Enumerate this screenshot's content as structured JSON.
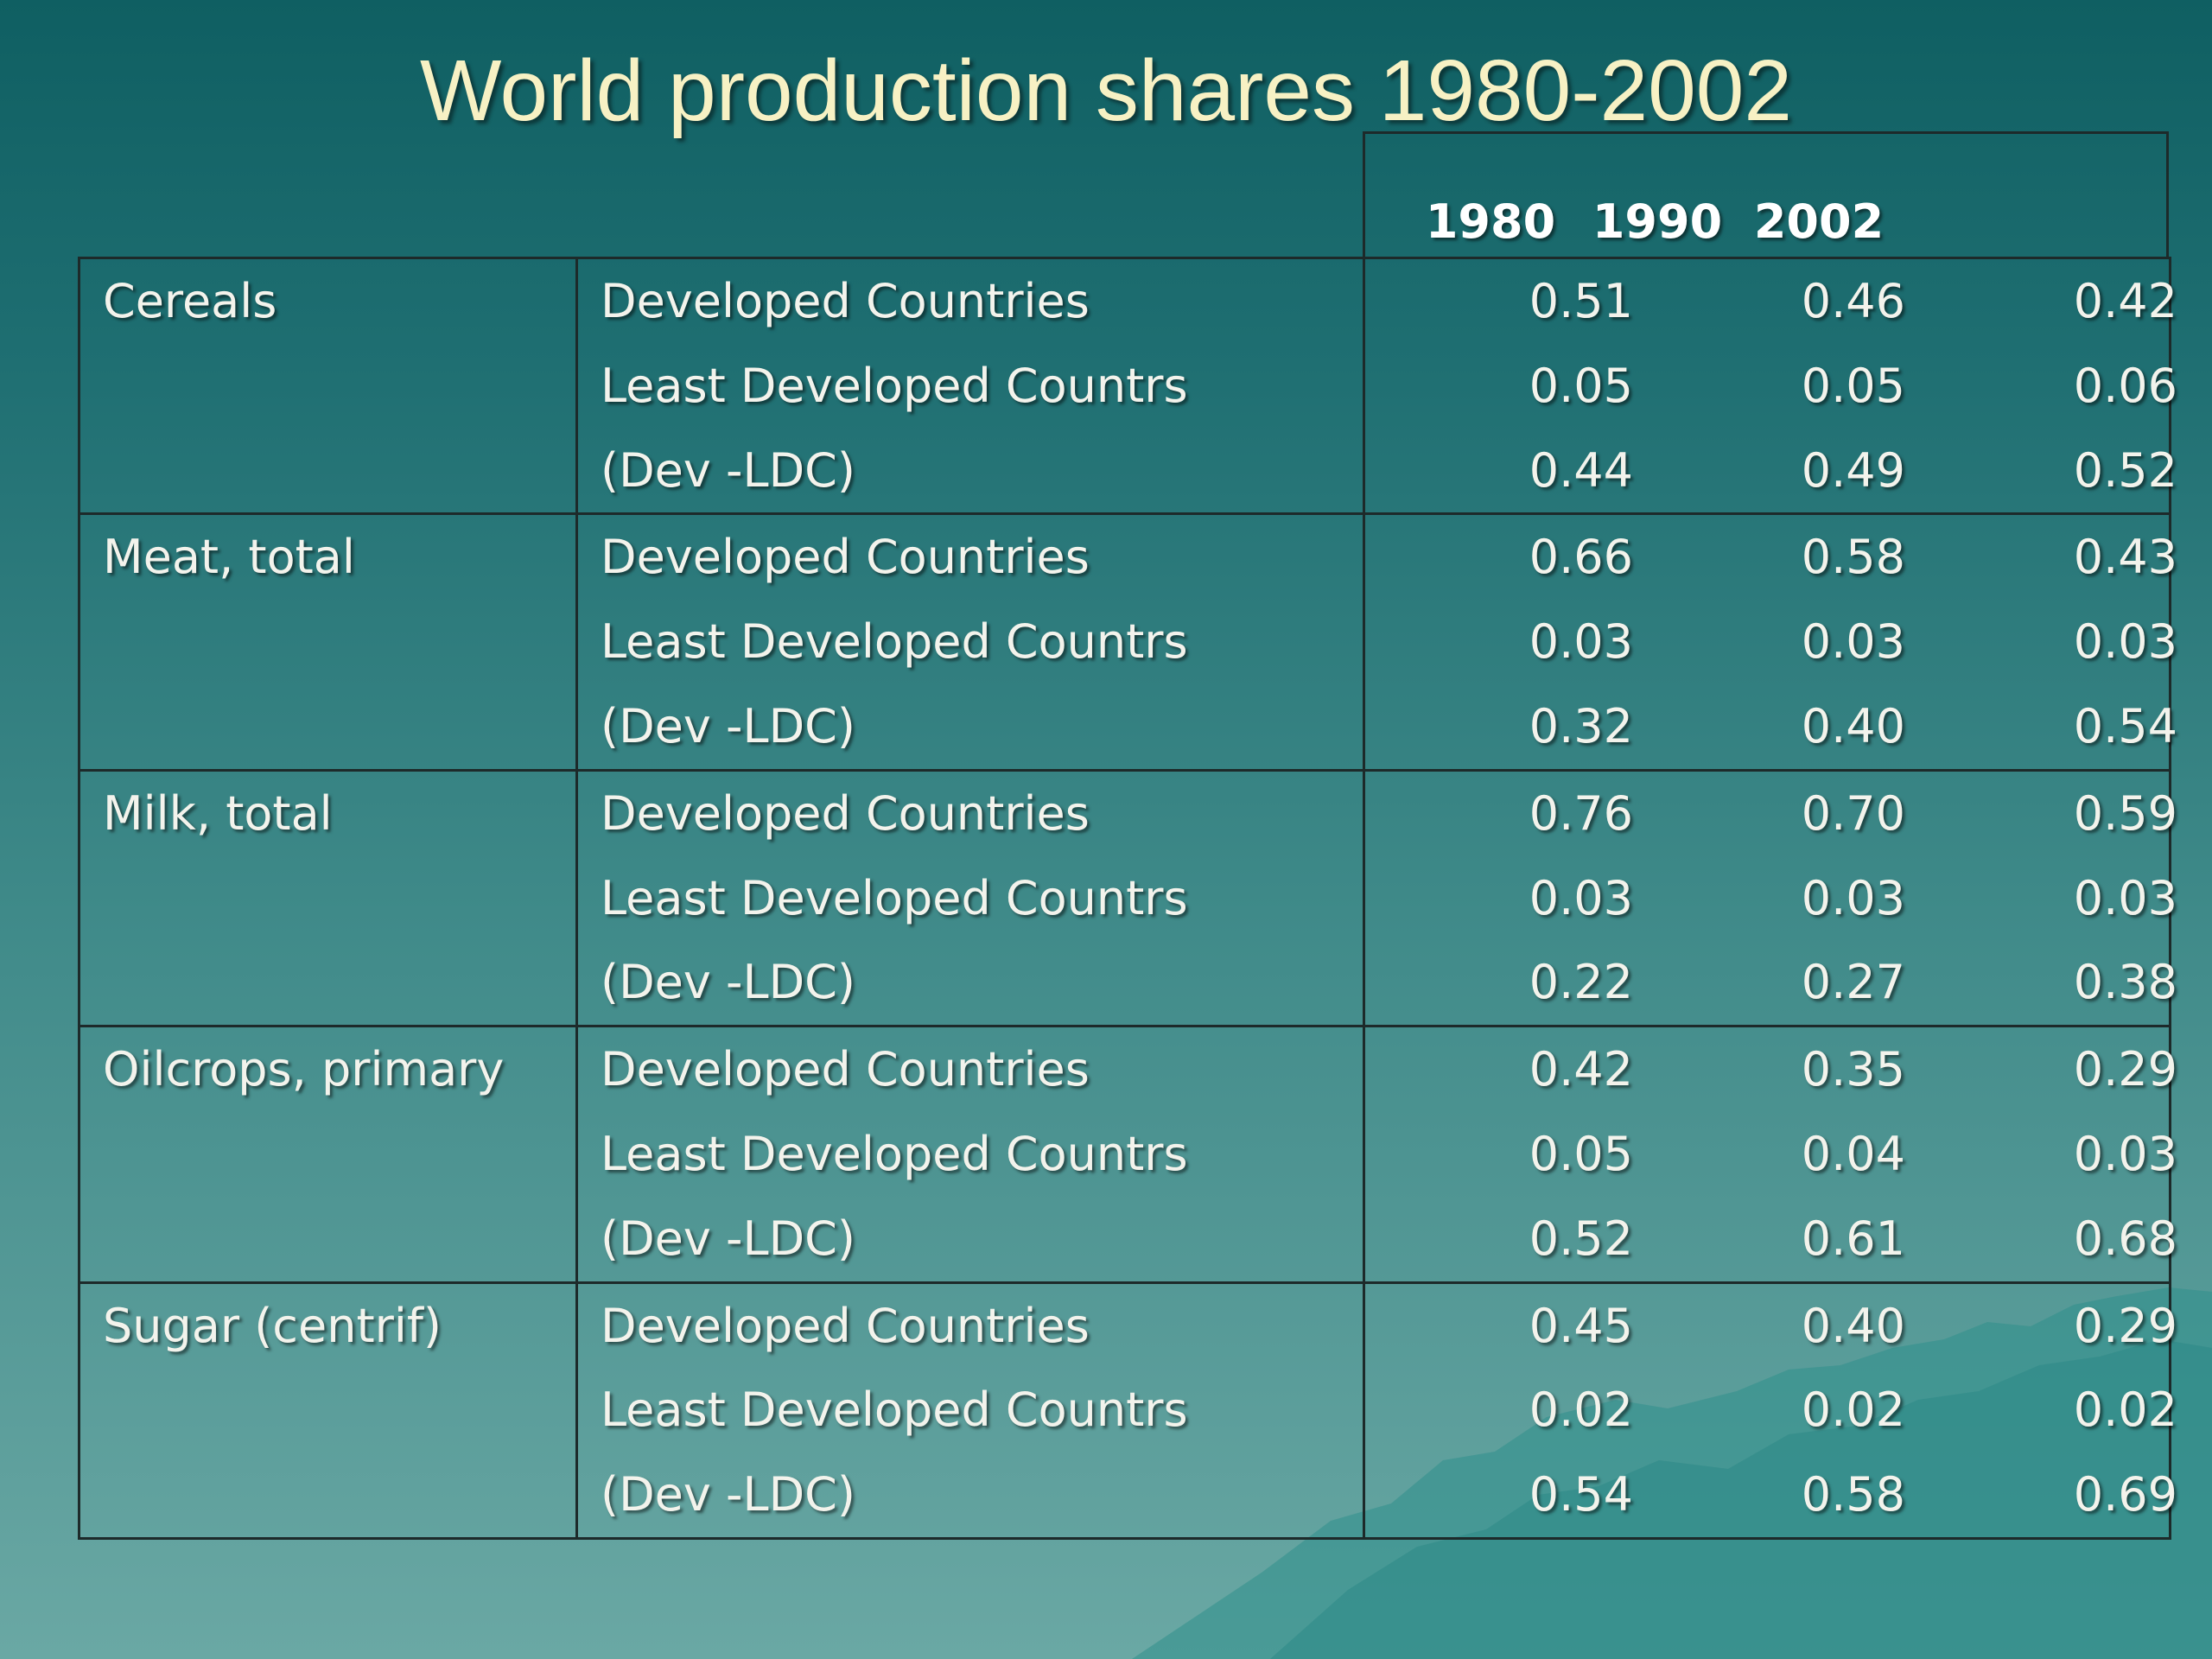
{
  "title": "World production shares 1980-2002",
  "colors": {
    "title": "#f7f1c4",
    "text": "#f3f3ec",
    "border": "#1d2a2a",
    "bg_top": "#0f5f62",
    "bg_bottom": "#6aa8a4"
  },
  "years": [
    "1980",
    "1990",
    "2002"
  ],
  "sections": [
    {
      "category": "Cereals",
      "groups": [
        "Developed Countries",
        "Least Developed Countrs",
        "(Dev -LDC)"
      ],
      "values": [
        [
          "0.51",
          "0.46",
          "0.42"
        ],
        [
          "0.05",
          "0.05",
          "0.06"
        ],
        [
          "0.44",
          "0.49",
          "0.52"
        ]
      ]
    },
    {
      "category": "Meat, total",
      "groups": [
        "Developed Countries",
        "Least Developed Countrs",
        "(Dev -LDC)"
      ],
      "values": [
        [
          "0.66",
          "0.58",
          "0.43"
        ],
        [
          "0.03",
          "0.03",
          "0.03"
        ],
        [
          "0.32",
          "0.40",
          "0.54"
        ]
      ]
    },
    {
      "category": "Milk, total",
      "groups": [
        "Developed Countries",
        "Least Developed Countrs",
        "(Dev -LDC)"
      ],
      "values": [
        [
          "0.76",
          "0.70",
          "0.59"
        ],
        [
          "0.03",
          "0.03",
          "0.03"
        ],
        [
          "0.22",
          "0.27",
          "0.38"
        ]
      ]
    },
    {
      "category": "Oilcrops, primary",
      "groups": [
        "Developed Countries",
        "Least Developed Countrs",
        "(Dev -LDC)"
      ],
      "values": [
        [
          "0.42",
          "0.35",
          "0.29"
        ],
        [
          "0.05",
          "0.04",
          "0.03"
        ],
        [
          "0.52",
          "0.61",
          "0.68"
        ]
      ]
    },
    {
      "category": "Sugar (centrif)",
      "groups": [
        "Developed Countries",
        "Least Developed Countrs",
        "(Dev -LDC)"
      ],
      "values": [
        [
          "0.45",
          "0.40",
          "0.29"
        ],
        [
          "0.02",
          "0.02",
          "0.02"
        ],
        [
          "0.54",
          "0.58",
          "0.69"
        ]
      ]
    }
  ]
}
